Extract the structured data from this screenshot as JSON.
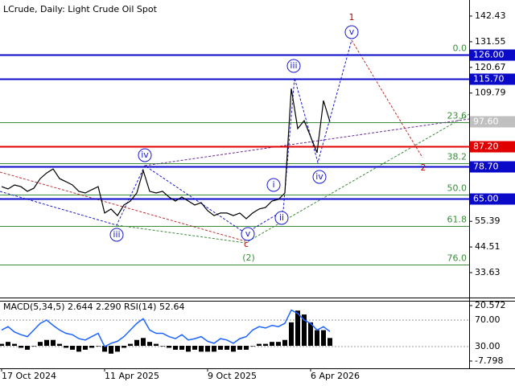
{
  "chart_data": [
    {
      "type": "line",
      "title": "LCrude, Daily:  Light Crude Oil Spot",
      "categories": [
        "17 Oct 2024",
        null,
        null,
        null,
        null,
        null,
        null,
        null,
        null,
        null,
        null,
        null,
        null,
        null,
        null,
        null,
        "11 Apr 2025",
        null,
        null,
        null,
        null,
        null,
        null,
        null,
        null,
        null,
        null,
        null,
        null,
        null,
        null,
        null,
        "9 Oct 2025",
        null,
        null,
        null,
        null,
        null,
        null,
        null,
        null,
        null,
        null,
        null,
        null,
        null,
        null,
        null,
        "6 Apr 2026",
        null,
        null,
        null
      ],
      "values": [
        70.1,
        69.1,
        70.8,
        70.1,
        68.1,
        69.4,
        73.5,
        75.9,
        77.6,
        73.5,
        72.2,
        70.8,
        68.1,
        67.4,
        68.8,
        70.1,
        58.9,
        60.6,
        57.8,
        62.3,
        64.0,
        67.4,
        76.9,
        68.1,
        67.4,
        68.1,
        65.7,
        64.0,
        65.7,
        64.0,
        62.3,
        63.3,
        59.9,
        57.8,
        58.9,
        58.9,
        57.8,
        58.9,
        56.5,
        58.9,
        60.6,
        61.3,
        64.0,
        64.7,
        67.4,
        111.7,
        94.7,
        98.1,
        91.3,
        84.5,
        106.6,
        97.6
      ],
      "color": "#000000",
      "ylim": [
        23.06,
        149.25
      ],
      "yticks": [
        142.43,
        131.55,
        120.67,
        109.79,
        55.39,
        44.51,
        33.63
      ],
      "levels": [
        {
          "value": 126,
          "label": "126.00",
          "color": "#0a0ac8"
        },
        {
          "value": 115.7,
          "label": "115.70",
          "color": "#0a0ac8"
        },
        {
          "value": 87.2,
          "label": "87.20",
          "color": "#e00000"
        },
        {
          "value": 78.7,
          "label": "78.70",
          "color": "#0a0ac8"
        },
        {
          "value": 65,
          "label": "65.00",
          "color": "#0a0ac8"
        }
      ],
      "price_label": {
        "value": 97.6,
        "label": "97.60",
        "color": "#c0c0c0"
      },
      "fib_color": "#3c8c3c",
      "fib_levels": [
        {
          "value": 126,
          "label": "0.0"
        },
        {
          "value": 97.4,
          "label": "23.6"
        },
        {
          "value": 80.0,
          "label": "38.2"
        },
        {
          "value": 66.7,
          "label": "50.0"
        },
        {
          "value": 53.4,
          "label": "61.8"
        },
        {
          "value": 37.0,
          "label": "76.0"
        }
      ],
      "wave_labels": [
        {
          "text": "1",
          "color": "#c00000"
        },
        {
          "text": "v",
          "color": "#1a1ad0"
        },
        {
          "text": "iii",
          "color": "#1a1ad0"
        },
        {
          "text": "iv",
          "color": "#1a1ad0"
        },
        {
          "text": "i",
          "color": "#1a1ad0"
        },
        {
          "text": "ii",
          "color": "#1a1ad0"
        },
        {
          "text": "2",
          "color": "#c00000"
        },
        {
          "text": "v",
          "color": "#1a1ad0"
        },
        {
          "text": "c",
          "color": "#c00000"
        },
        {
          "text": "(2)",
          "color": "#3c8c3c"
        },
        {
          "text": "iv",
          "color": "#1a1ad0"
        },
        {
          "text": "iii",
          "color": "#1a1ad0"
        }
      ]
    },
    {
      "type": "macd",
      "title": "MACD(5,34,5) 2.644 2.290 RSI(14) 52.64",
      "ylim": [
        -7.798,
        20.572
      ],
      "yticks": [
        20.572,
        -7.798
      ],
      "y2lim": [
        8.2,
        91.8
      ],
      "y2ticks": [
        {
          "value": 70,
          "label": "70.00"
        },
        {
          "value": 30,
          "label": "30.00"
        }
      ],
      "series": [
        {
          "color": "#000000",
          "values": [
            1,
            2,
            1,
            -1,
            -2,
            0,
            2,
            3,
            3,
            1,
            -1,
            -2,
            -3,
            -2,
            -1,
            0,
            -3,
            -4,
            -3,
            -1,
            1,
            3,
            4,
            2,
            1,
            0,
            -1,
            -2,
            -2,
            -3,
            -2,
            -3,
            -3,
            -3,
            -2,
            -2,
            -3,
            -2,
            -2,
            0,
            1,
            1,
            2,
            2,
            3,
            12,
            18,
            16,
            12,
            8,
            8,
            4
          ]
        },
        {
          "color": "#1e64ff",
          "axis": "y2",
          "values": [
            55,
            60,
            52,
            48,
            45,
            55,
            65,
            70,
            62,
            55,
            50,
            48,
            42,
            40,
            45,
            50,
            30,
            35,
            38,
            45,
            55,
            65,
            72,
            55,
            50,
            50,
            45,
            42,
            48,
            40,
            42,
            45,
            38,
            35,
            42,
            40,
            35,
            42,
            45,
            55,
            60,
            58,
            62,
            60,
            65,
            85,
            80,
            70,
            65,
            55,
            60,
            52.64
          ]
        }
      ]
    }
  ]
}
